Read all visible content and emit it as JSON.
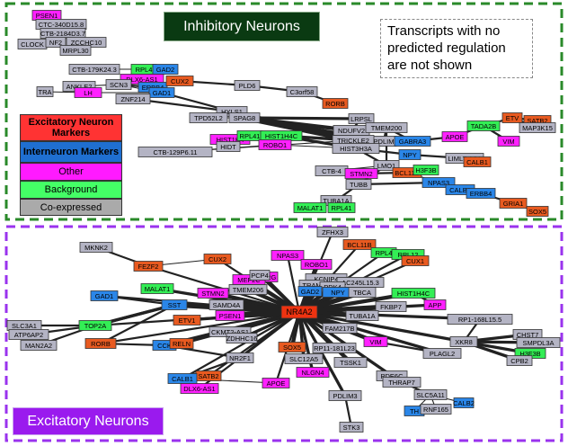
{
  "panels": {
    "inhibitory_title": "Inhibitory Neurons",
    "excitatory_title": "Excitatory Neurons"
  },
  "note": {
    "line1": "Transcripts with no",
    "line2": "predicted regulation",
    "line3": "are not shown"
  },
  "legend": [
    {
      "label": "Excitatory Neuron Markers",
      "color": "#ff3333",
      "text_color": "#000000",
      "bold": true
    },
    {
      "label": "Interneuron Markers",
      "color": "#1f6fd1",
      "text_color": "#000000",
      "bold": true
    },
    {
      "label": "Other",
      "color": "#ff1aff",
      "text_color": "#000000",
      "bold": false
    },
    {
      "label": "Background",
      "color": "#44ff66",
      "text_color": "#000000",
      "bold": false
    },
    {
      "label": "Co-expressed",
      "color": "#aaaaaa",
      "text_color": "#000000",
      "bold": false
    }
  ],
  "colors": {
    "excitatory": "#e85a20",
    "interneuron": "#2a86e8",
    "other": "#ff20ff",
    "background": "#33ee55",
    "coexpressed": "#b4b4c4",
    "hub": "#ee3311",
    "inhibitory_border": "#2a8a2a",
    "excitatory_border": "#9a33ee",
    "inhibitory_title_bg": "#0a3a12",
    "excitatory_title_bg": "#9a1aee",
    "edge": "#222222"
  },
  "inhibitory_nodes": [
    {
      "label": "PSEN1",
      "type": "other"
    },
    {
      "label": "CTC-340D15.8",
      "type": "coexpressed"
    },
    {
      "label": "CTB-2184D3.7",
      "type": "coexpressed"
    },
    {
      "label": "ZCCHC10",
      "type": "coexpressed"
    },
    {
      "label": "CLOCK",
      "type": "coexpressed"
    },
    {
      "label": "NF2",
      "type": "coexpressed"
    },
    {
      "label": "MRPL30",
      "type": "coexpressed"
    },
    {
      "label": "CTB-179K24.3",
      "type": "coexpressed"
    },
    {
      "label": "RPL4",
      "type": "background"
    },
    {
      "label": "GAD2",
      "type": "interneuron"
    },
    {
      "label": "DLX6-AS1",
      "type": "other"
    },
    {
      "label": "ANKLE2",
      "type": "coexpressed"
    },
    {
      "label": "SCN3",
      "type": "coexpressed"
    },
    {
      "label": "ERBB4",
      "type": "interneuron"
    },
    {
      "label": "CUX2",
      "type": "excitatory"
    },
    {
      "label": "TRA",
      "type": "coexpressed"
    },
    {
      "label": "LH",
      "type": "other"
    },
    {
      "label": "GAD1",
      "type": "interneuron"
    },
    {
      "label": "ZNF214",
      "type": "coexpressed"
    },
    {
      "label": "PLD6",
      "type": "coexpressed"
    },
    {
      "label": "C3orf58",
      "type": "coexpressed"
    },
    {
      "label": "RORB",
      "type": "excitatory"
    },
    {
      "label": "HYLS1",
      "type": "coexpressed"
    },
    {
      "label": "SPAG8",
      "type": "coexpressed"
    },
    {
      "label": "TPD52L2",
      "type": "coexpressed"
    },
    {
      "label": "LRPSL",
      "type": "coexpressed"
    },
    {
      "label": "NDUFV2",
      "type": "coexpressed"
    },
    {
      "label": "TMEM200",
      "type": "coexpressed"
    },
    {
      "label": "PDLIM",
      "type": "coexpressed"
    },
    {
      "label": "GABRA3",
      "type": "interneuron"
    },
    {
      "label": "APOE",
      "type": "other"
    },
    {
      "label": "TADA2B",
      "type": "background"
    },
    {
      "label": "ETV",
      "type": "excitatory"
    },
    {
      "label": "SATB2",
      "type": "excitatory"
    },
    {
      "label": "MAP3K15",
      "type": "coexpressed"
    },
    {
      "label": "VIM",
      "type": "other"
    },
    {
      "label": "HIST1H4",
      "type": "other"
    },
    {
      "label": "RPL41",
      "type": "background"
    },
    {
      "label": "HIST1H4C",
      "type": "background"
    },
    {
      "label": "ROBO1",
      "type": "other"
    },
    {
      "label": "HIDT",
      "type": "coexpressed"
    },
    {
      "label": "TRICKLE2",
      "type": "coexpressed"
    },
    {
      "label": "HIST3H3A",
      "type": "coexpressed"
    },
    {
      "label": "NPY",
      "type": "interneuron"
    },
    {
      "label": "LIMLT-AS1",
      "type": "coexpressed"
    },
    {
      "label": "CALB1",
      "type": "excitatory"
    },
    {
      "label": "CTB-129P6.11",
      "type": "coexpressed"
    },
    {
      "label": "LMO1",
      "type": "coexpressed"
    },
    {
      "label": "CTB-4",
      "type": "coexpressed"
    },
    {
      "label": "STMN2",
      "type": "other"
    },
    {
      "label": "BCL11B",
      "type": "excitatory"
    },
    {
      "label": "H3F3B",
      "type": "background"
    },
    {
      "label": "TUBB",
      "type": "coexpressed"
    },
    {
      "label": "NPAS3",
      "type": "interneuron"
    },
    {
      "label": "CALB2",
      "type": "interneuron"
    },
    {
      "label": "ERBB4",
      "type": "interneuron"
    },
    {
      "label": "TUBA1A",
      "type": "coexpressed"
    },
    {
      "label": "MALAT1",
      "type": "background"
    },
    {
      "label": "RPL41",
      "type": "background"
    },
    {
      "label": "GRIA1",
      "type": "excitatory"
    },
    {
      "label": "SOX5",
      "type": "excitatory"
    }
  ],
  "excitatory_nodes": [
    {
      "label": "ZFHX3",
      "type": "coexpressed"
    },
    {
      "label": "BCL11B",
      "type": "excitatory"
    },
    {
      "label": "RPL4",
      "type": "background"
    },
    {
      "label": "RPL12",
      "type": "background"
    },
    {
      "label": "MKNK2",
      "type": "coexpressed"
    },
    {
      "label": "CUX2",
      "type": "excitatory"
    },
    {
      "label": "NPAS3",
      "type": "other"
    },
    {
      "label": "CUX1",
      "type": "excitatory"
    },
    {
      "label": "FEZF2",
      "type": "excitatory"
    },
    {
      "label": "ROBO1",
      "type": "other"
    },
    {
      "label": "ESRRG",
      "type": "other"
    },
    {
      "label": "KCNIP4",
      "type": "coexpressed"
    },
    {
      "label": "AC245L15.3",
      "type": "coexpressed"
    },
    {
      "label": "MALAT1",
      "type": "background"
    },
    {
      "label": "TRAM",
      "type": "coexpressed"
    },
    {
      "label": "PDK4",
      "type": "coexpressed"
    },
    {
      "label": "MEF2C",
      "type": "other"
    },
    {
      "label": "TMEM206",
      "type": "coexpressed"
    },
    {
      "label": "GAD2",
      "type": "interneuron"
    },
    {
      "label": "PCP4",
      "type": "coexpressed"
    },
    {
      "label": "NPY",
      "type": "interneuron"
    },
    {
      "label": "GAD1",
      "type": "interneuron"
    },
    {
      "label": "HIST1H4C",
      "type": "background"
    },
    {
      "label": "TBCA",
      "type": "coexpressed"
    },
    {
      "label": "STMN2",
      "type": "other"
    },
    {
      "label": "SAMD4A",
      "type": "coexpressed"
    },
    {
      "label": "SST",
      "type": "interneuron"
    },
    {
      "label": "NR4A2",
      "type": "hub"
    },
    {
      "label": "APP",
      "type": "other"
    },
    {
      "label": "FKBP7",
      "type": "coexpressed"
    },
    {
      "label": "PSEN1",
      "type": "other"
    },
    {
      "label": "TUBA1A",
      "type": "coexpressed"
    },
    {
      "label": "SLC3A1",
      "type": "coexpressed"
    },
    {
      "label": "TOP2A",
      "type": "background"
    },
    {
      "label": "ATP6AP2",
      "type": "coexpressed"
    },
    {
      "label": "MAN2A2",
      "type": "coexpressed"
    },
    {
      "label": "ETV1",
      "type": "excitatory"
    },
    {
      "label": "RP1-168L15.5",
      "type": "coexpressed"
    },
    {
      "label": "FAM217B",
      "type": "coexpressed"
    },
    {
      "label": "CKMT2-AS1",
      "type": "coexpressed"
    },
    {
      "label": "ZDHHC16",
      "type": "coexpressed"
    },
    {
      "label": "CHST7",
      "type": "coexpressed"
    },
    {
      "label": "RORB",
      "type": "excitatory"
    },
    {
      "label": "CCK",
      "type": "interneuron"
    },
    {
      "label": "RELN",
      "type": "excitatory"
    },
    {
      "label": "VIM",
      "type": "other"
    },
    {
      "label": "XKR8",
      "type": "coexpressed"
    },
    {
      "label": "SMPDL3A",
      "type": "coexpressed"
    },
    {
      "label": "SOX5",
      "type": "excitatory"
    },
    {
      "label": "RP11-181L23",
      "type": "coexpressed"
    },
    {
      "label": "H3F3B",
      "type": "background"
    },
    {
      "label": "NR2F1",
      "type": "coexpressed"
    },
    {
      "label": "PLAGL2",
      "type": "coexpressed"
    },
    {
      "label": "CPB2",
      "type": "coexpressed"
    },
    {
      "label": "SLC12A5",
      "type": "coexpressed"
    },
    {
      "label": "TSSK1",
      "type": "coexpressed"
    },
    {
      "label": "SATB2",
      "type": "excitatory"
    },
    {
      "label": "CALB1",
      "type": "interneuron"
    },
    {
      "label": "NLGN4",
      "type": "other"
    },
    {
      "label": "PDE6C",
      "type": "coexpressed"
    },
    {
      "label": "DLX6-AS1",
      "type": "other"
    },
    {
      "label": "APOE",
      "type": "other"
    },
    {
      "label": "THRAP7",
      "type": "coexpressed"
    },
    {
      "label": "PDLIM3",
      "type": "coexpressed"
    },
    {
      "label": "SLC5A11",
      "type": "coexpressed"
    },
    {
      "label": "CALB2",
      "type": "interneuron"
    },
    {
      "label": "TH",
      "type": "interneuron"
    },
    {
      "label": "RNF165",
      "type": "coexpressed"
    },
    {
      "label": "STK3",
      "type": "coexpressed"
    }
  ]
}
